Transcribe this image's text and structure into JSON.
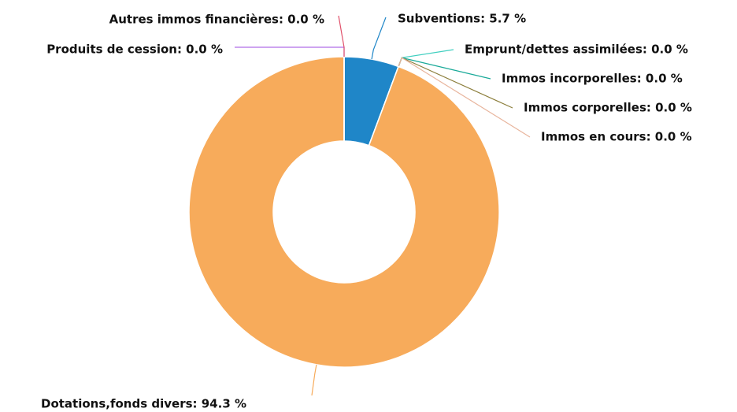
{
  "chart_data": {
    "type": "donut",
    "values": [
      5.7,
      0.0,
      0.0,
      0.0,
      0.0,
      94.3,
      0.0,
      0.0
    ],
    "value_labels": [
      "Subventions: 5.7 %",
      "Emprunt/dettes assimilées: 0.0 %",
      "Immos incorporelles: 0.0 %",
      "Immos corporelles: 0.0 %",
      "Immos en cours: 0.0 %",
      "Dotations,fonds divers: 94.3 %",
      "Produits de cession: 0.0 %",
      "Autres immos financières: 0.0 %"
    ],
    "colors": [
      "#1f86c8",
      "#40cfc0",
      "#1aaa99",
      "#8b7d3a",
      "#e8b49c",
      "#f7ab5b",
      "#b06ee8",
      "#e0506a"
    ]
  }
}
